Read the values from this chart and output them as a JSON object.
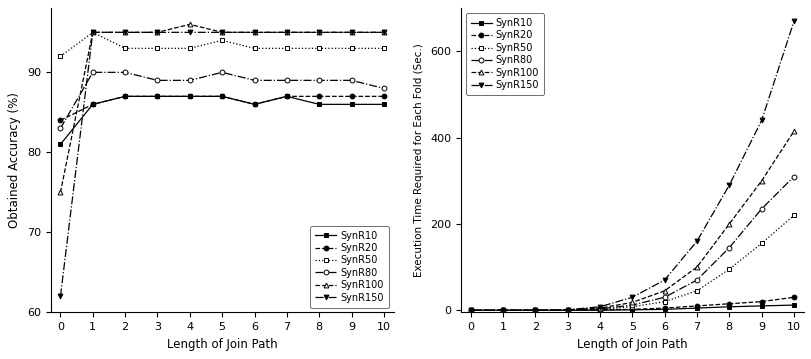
{
  "x": [
    0,
    1,
    2,
    3,
    4,
    5,
    6,
    7,
    8,
    9,
    10
  ],
  "accuracy": {
    "SynR10": [
      81,
      86,
      87,
      87,
      87,
      87,
      86,
      87,
      86,
      86,
      86
    ],
    "SynR20": [
      84,
      86,
      87,
      87,
      87,
      87,
      86,
      87,
      87,
      87,
      87
    ],
    "SynR50": [
      92,
      95,
      93,
      93,
      93,
      94,
      93,
      93,
      93,
      93,
      93
    ],
    "SynR80": [
      83,
      90,
      90,
      89,
      89,
      90,
      89,
      89,
      89,
      89,
      88
    ],
    "SynR100": [
      75,
      95,
      95,
      95,
      96,
      95,
      95,
      95,
      95,
      95,
      95
    ],
    "SynR150": [
      62,
      95,
      95,
      95,
      95,
      95,
      95,
      95,
      95,
      95,
      95
    ]
  },
  "exec_time": {
    "SynR10": [
      0,
      0,
      0,
      0,
      0,
      1,
      2,
      5,
      8,
      10,
      12
    ],
    "SynR20": [
      0,
      0,
      0,
      0,
      1,
      2,
      5,
      10,
      15,
      20,
      30
    ],
    "SynR50": [
      0,
      0,
      0,
      0,
      2,
      8,
      20,
      45,
      95,
      155,
      220
    ],
    "SynR80": [
      0,
      0,
      0,
      0,
      3,
      12,
      30,
      70,
      145,
      235,
      310
    ],
    "SynR100": [
      0,
      0,
      0,
      1,
      5,
      18,
      45,
      100,
      200,
      300,
      415
    ],
    "SynR150": [
      0,
      0,
      0,
      1,
      8,
      30,
      70,
      160,
      290,
      440,
      670
    ]
  },
  "series": [
    "SynR10",
    "SynR20",
    "SynR50",
    "SynR80",
    "SynR100",
    "SynR150"
  ],
  "line_styles_left": [
    "-",
    "--",
    ":",
    "-.",
    "--",
    "-."
  ],
  "line_styles_right": [
    "-",
    "--",
    ":",
    "-.",
    "--",
    "-."
  ],
  "markers": [
    "s",
    "o",
    "s",
    "o",
    "^",
    "v"
  ],
  "marker_facecolors_left": [
    "black",
    "black",
    "white",
    "white",
    "white",
    "black"
  ],
  "marker_facecolors_right": [
    "black",
    "black",
    "white",
    "white",
    "white",
    "black"
  ],
  "xlabel": "Length of Join Path",
  "ylabel_left": "Obtained Accuracy (%)",
  "ylabel_right": "Execution Time Required for Each Fold (Sec.)",
  "ylim_left": [
    60,
    98
  ],
  "ylim_right": [
    -5,
    700
  ],
  "yticks_left": [
    60,
    70,
    80,
    90
  ],
  "yticks_right": [
    0,
    200,
    400,
    600
  ],
  "xticks": [
    0,
    1,
    2,
    3,
    4,
    5,
    6,
    7,
    8,
    9,
    10
  ]
}
